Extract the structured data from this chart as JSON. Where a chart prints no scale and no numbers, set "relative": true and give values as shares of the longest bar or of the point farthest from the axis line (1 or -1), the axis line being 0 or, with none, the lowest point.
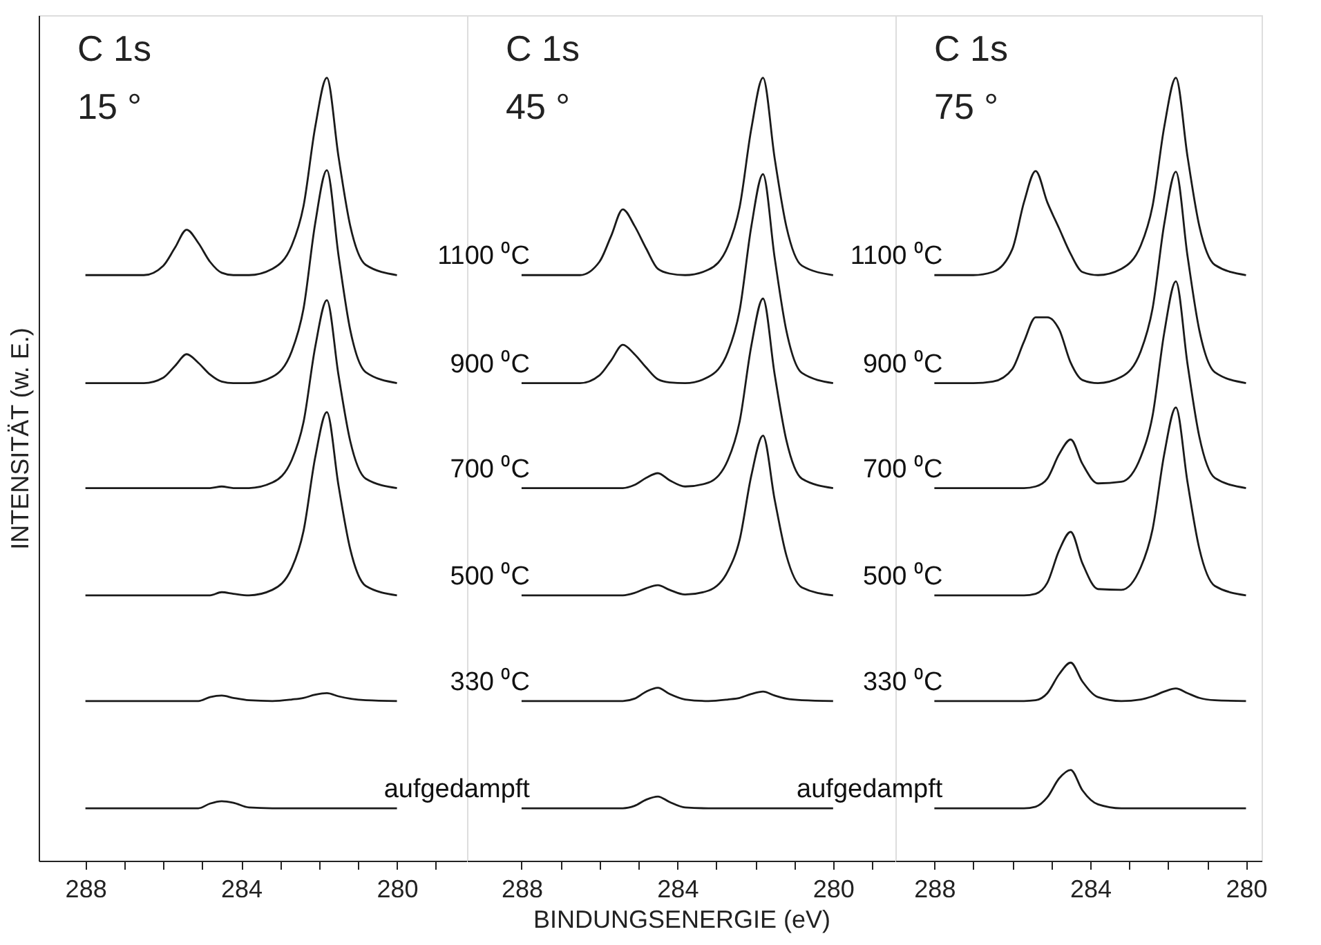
{
  "chart_data": [
    {
      "type": "line",
      "relative": true,
      "ylabel": "INTENSITÄT (w. E.)",
      "annotations": [
        "C 1s",
        "15 °"
      ],
      "xlim": [
        289.2,
        278.2
      ],
      "xticks": [
        288,
        {
          "value": 287,
          "label": null
        },
        {
          "value": 286,
          "label": null
        },
        {
          "value": 285,
          "label": null
        },
        284,
        {
          "value": 283,
          "label": null
        },
        {
          "value": 282,
          "label": null
        },
        {
          "value": 281,
          "label": null
        },
        280,
        {
          "value": 279,
          "label": null
        }
      ],
      "tick_labels": "x",
      "grid": false,
      "legend": false,
      "x": [
        288,
        287,
        286.5,
        286,
        285.7,
        285.4,
        285.1,
        284.8,
        284.5,
        284.2,
        283.8,
        283.2,
        282.7,
        282.4,
        282.1,
        281.8,
        281.5,
        281.2,
        280.8,
        280
      ],
      "series": [
        {
          "color": "#1a1a1a",
          "values": [
            0.748,
            0.748,
            0.748,
            0.76,
            0.783,
            0.806,
            0.789,
            0.765,
            0.751,
            0.748,
            0.748,
            0.756,
            0.786,
            0.836,
            0.937,
            1.0,
            0.899,
            0.811,
            0.761,
            0.748
          ]
        },
        {
          "color": "#1a1a1a",
          "values": [
            0.61,
            0.61,
            0.61,
            0.617,
            0.632,
            0.647,
            0.636,
            0.621,
            0.612,
            0.61,
            0.61,
            0.618,
            0.651,
            0.705,
            0.814,
            0.882,
            0.773,
            0.678,
            0.624,
            0.61
          ]
        },
        {
          "color": "#1a1a1a",
          "values": [
            0.476,
            0.476,
            0.476,
            0.476,
            0.476,
            0.476,
            0.476,
            0.476,
            0.478,
            0.476,
            0.476,
            0.483,
            0.512,
            0.56,
            0.656,
            0.716,
            0.62,
            0.536,
            0.488,
            0.476
          ]
        },
        {
          "color": "#1a1a1a",
          "values": [
            0.339,
            0.339,
            0.339,
            0.339,
            0.339,
            0.339,
            0.339,
            0.339,
            0.343,
            0.341,
            0.339,
            0.346,
            0.374,
            0.421,
            0.515,
            0.573,
            0.479,
            0.398,
            0.351,
            0.339
          ]
        },
        {
          "color": "#1a1a1a",
          "values": [
            0.204,
            0.204,
            0.204,
            0.204,
            0.204,
            0.204,
            0.204,
            0.209,
            0.211,
            0.208,
            0.205,
            0.204,
            0.206,
            0.208,
            0.212,
            0.214,
            0.21,
            0.207,
            0.205,
            0.204
          ]
        },
        {
          "color": "#1a1a1a",
          "values": [
            0.067,
            0.067,
            0.067,
            0.067,
            0.067,
            0.067,
            0.067,
            0.073,
            0.076,
            0.074,
            0.068,
            0.067,
            0.067,
            0.067,
            0.067,
            0.067,
            0.067,
            0.067,
            0.067,
            0.067
          ]
        }
      ]
    },
    {
      "type": "line",
      "relative": true,
      "xlabel": "BINDUNGSENERGIE (eV)",
      "annotations": [
        "C 1s",
        "45 °"
      ],
      "xlim": [
        289.4,
        278.4
      ],
      "xticks": [
        288,
        {
          "value": 287,
          "label": null
        },
        {
          "value": 286,
          "label": null
        },
        {
          "value": 285,
          "label": null
        },
        284,
        {
          "value": 283,
          "label": null
        },
        {
          "value": 282,
          "label": null
        },
        {
          "value": 281,
          "label": null
        },
        280,
        {
          "value": 279,
          "label": null
        }
      ],
      "tick_labels": "x",
      "grid": false,
      "legend": false,
      "x": [
        288,
        287,
        286.5,
        286,
        285.7,
        285.4,
        285.1,
        284.8,
        284.5,
        284.2,
        283.8,
        283.2,
        282.7,
        282.4,
        282.1,
        281.8,
        281.5,
        281.2,
        280.8,
        280
      ],
      "series": [
        {
          "name": "1100 ⁰C",
          "color": "#1a1a1a",
          "values": [
            0.748,
            0.748,
            0.748,
            0.765,
            0.798,
            0.832,
            0.811,
            0.782,
            0.756,
            0.75,
            0.748,
            0.755,
            0.785,
            0.835,
            0.935,
            1.0,
            0.897,
            0.81,
            0.76,
            0.748
          ]
        },
        {
          "name": "900 ⁰C",
          "color": "#1a1a1a",
          "values": [
            0.61,
            0.61,
            0.61,
            0.62,
            0.639,
            0.659,
            0.647,
            0.63,
            0.615,
            0.611,
            0.61,
            0.618,
            0.65,
            0.703,
            0.81,
            0.877,
            0.77,
            0.677,
            0.623,
            0.61
          ]
        },
        {
          "name": "700 ⁰C",
          "color": "#1a1a1a",
          "values": [
            0.476,
            0.476,
            0.476,
            0.476,
            0.476,
            0.476,
            0.48,
            0.489,
            0.495,
            0.486,
            0.478,
            0.483,
            0.512,
            0.561,
            0.658,
            0.718,
            0.621,
            0.537,
            0.488,
            0.476
          ]
        },
        {
          "name": "500 ⁰C",
          "color": "#1a1a1a",
          "values": [
            0.339,
            0.339,
            0.339,
            0.339,
            0.339,
            0.339,
            0.342,
            0.348,
            0.352,
            0.346,
            0.34,
            0.345,
            0.37,
            0.41,
            0.492,
            0.543,
            0.461,
            0.39,
            0.349,
            0.339
          ]
        },
        {
          "name": "330 ⁰C",
          "color": "#1a1a1a",
          "values": [
            0.204,
            0.204,
            0.204,
            0.204,
            0.204,
            0.204,
            0.207,
            0.216,
            0.221,
            0.213,
            0.206,
            0.204,
            0.206,
            0.208,
            0.213,
            0.216,
            0.211,
            0.207,
            0.205,
            0.204
          ]
        },
        {
          "name": "aufgedampft",
          "color": "#1a1a1a",
          "values": [
            0.067,
            0.067,
            0.067,
            0.067,
            0.067,
            0.067,
            0.07,
            0.078,
            0.082,
            0.075,
            0.068,
            0.067,
            0.067,
            0.067,
            0.067,
            0.067,
            0.067,
            0.067,
            0.067,
            0.067
          ]
        }
      ]
    },
    {
      "type": "line",
      "relative": true,
      "annotations": [
        "C 1s",
        "75 °"
      ],
      "xlim": [
        289.0,
        279.6
      ],
      "xticks": [
        288,
        {
          "value": 287,
          "label": null
        },
        {
          "value": 286,
          "label": null
        },
        {
          "value": 285,
          "label": null
        },
        284,
        {
          "value": 283,
          "label": null
        },
        {
          "value": 282,
          "label": null
        },
        {
          "value": 281,
          "label": null
        },
        280
      ],
      "tick_labels": "x",
      "grid": false,
      "legend": false,
      "x": [
        288,
        287,
        286.5,
        286,
        285.7,
        285.4,
        285.1,
        284.8,
        284.5,
        284.2,
        283.8,
        283.2,
        282.7,
        282.4,
        282.1,
        281.8,
        281.5,
        281.2,
        280.8,
        280
      ],
      "series": [
        {
          "name": "1100 ⁰C",
          "color": "#1a1a1a",
          "values": [
            0.748,
            0.748,
            0.752,
            0.781,
            0.841,
            0.881,
            0.841,
            0.808,
            0.775,
            0.752,
            0.748,
            0.756,
            0.786,
            0.836,
            0.937,
            1.0,
            0.899,
            0.811,
            0.761,
            0.748
          ]
        },
        {
          "name": "900 ⁰C",
          "color": "#1a1a1a",
          "values": [
            0.61,
            0.61,
            0.612,
            0.628,
            0.663,
            0.694,
            0.694,
            0.679,
            0.636,
            0.614,
            0.61,
            0.618,
            0.651,
            0.705,
            0.813,
            0.88,
            0.772,
            0.678,
            0.624,
            0.61
          ]
        },
        {
          "name": "700 ⁰C",
          "color": "#1a1a1a",
          "values": [
            0.476,
            0.476,
            0.476,
            0.476,
            0.476,
            0.478,
            0.488,
            0.519,
            0.538,
            0.507,
            0.482,
            0.484,
            0.516,
            0.568,
            0.674,
            0.74,
            0.634,
            0.542,
            0.489,
            0.476
          ]
        },
        {
          "name": "500 ⁰C",
          "color": "#1a1a1a",
          "values": [
            0.339,
            0.339,
            0.339,
            0.339,
            0.339,
            0.341,
            0.355,
            0.396,
            0.42,
            0.38,
            0.347,
            0.346,
            0.375,
            0.423,
            0.519,
            0.579,
            0.483,
            0.399,
            0.351,
            0.339
          ]
        },
        {
          "name": "330 ⁰C",
          "color": "#1a1a1a",
          "values": [
            0.204,
            0.204,
            0.204,
            0.204,
            0.204,
            0.205,
            0.214,
            0.238,
            0.253,
            0.229,
            0.209,
            0.204,
            0.206,
            0.21,
            0.216,
            0.22,
            0.214,
            0.208,
            0.205,
            0.204
          ]
        },
        {
          "name": "aufgedampft",
          "color": "#1a1a1a",
          "values": [
            0.067,
            0.067,
            0.067,
            0.067,
            0.067,
            0.069,
            0.081,
            0.105,
            0.116,
            0.09,
            0.072,
            0.067,
            0.067,
            0.067,
            0.067,
            0.067,
            0.067,
            0.067,
            0.067,
            0.067
          ]
        }
      ]
    }
  ]
}
